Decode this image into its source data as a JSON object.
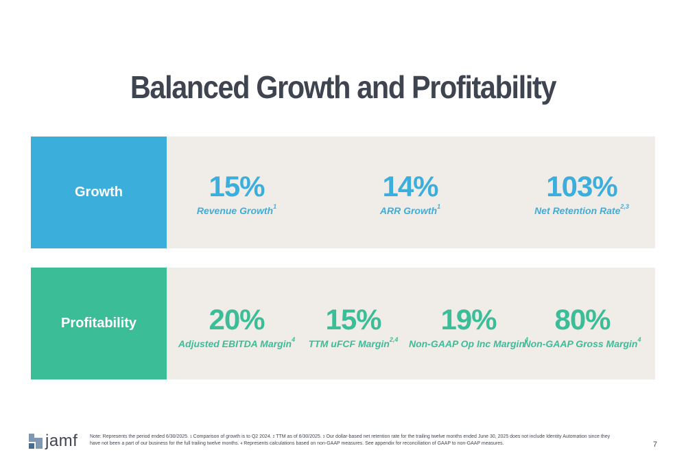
{
  "title": "Balanced Growth and Profitability",
  "growth": {
    "label": "Growth",
    "color": "#3caedb",
    "metrics": [
      {
        "value": "15%",
        "caption": "Revenue Growth",
        "sup": "1"
      },
      {
        "value": "14%",
        "caption": "ARR Growth",
        "sup": "1"
      },
      {
        "value": "103%",
        "caption": "Net Retention Rate",
        "sup": "2,3"
      }
    ]
  },
  "profitability": {
    "label": "Profitability",
    "color": "#3bbd98",
    "metrics": [
      {
        "value": "20%",
        "caption": "Adjusted EBITDA Margin",
        "sup": "4"
      },
      {
        "value": "15%",
        "caption": "TTM uFCF Margin",
        "sup": "2,4"
      },
      {
        "value": "19%",
        "caption": "Non-GAAP Op Inc Margin",
        "sup": "4"
      },
      {
        "value": "80%",
        "caption": "Non-GAAP Gross Margin",
        "sup": "4"
      }
    ]
  },
  "footer": {
    "logo_text": "jamf",
    "logo_icon": "jamf-logo-icon",
    "note_parts": [
      {
        "text": "Note: Represents the period ended 6/30/2025. "
      },
      {
        "sup": "1"
      },
      {
        "text": " Comparison of growth is to Q2 2024. "
      },
      {
        "sup": "2"
      },
      {
        "text": " TTM as of 6/30/2025. "
      },
      {
        "sup": "3"
      },
      {
        "text": " Our dollar-based net retention rate for the trailing twelve months ended June 30, 2025 does not include Identity Automation since they have not been a part of our business for the full trailing twelve months. "
      },
      {
        "sup": "4"
      },
      {
        "text": " Represents calculations based on non-GAAP measures. See appendix for reconciliation of GAAP to non-GAAP measures."
      }
    ],
    "page_number": "7"
  }
}
